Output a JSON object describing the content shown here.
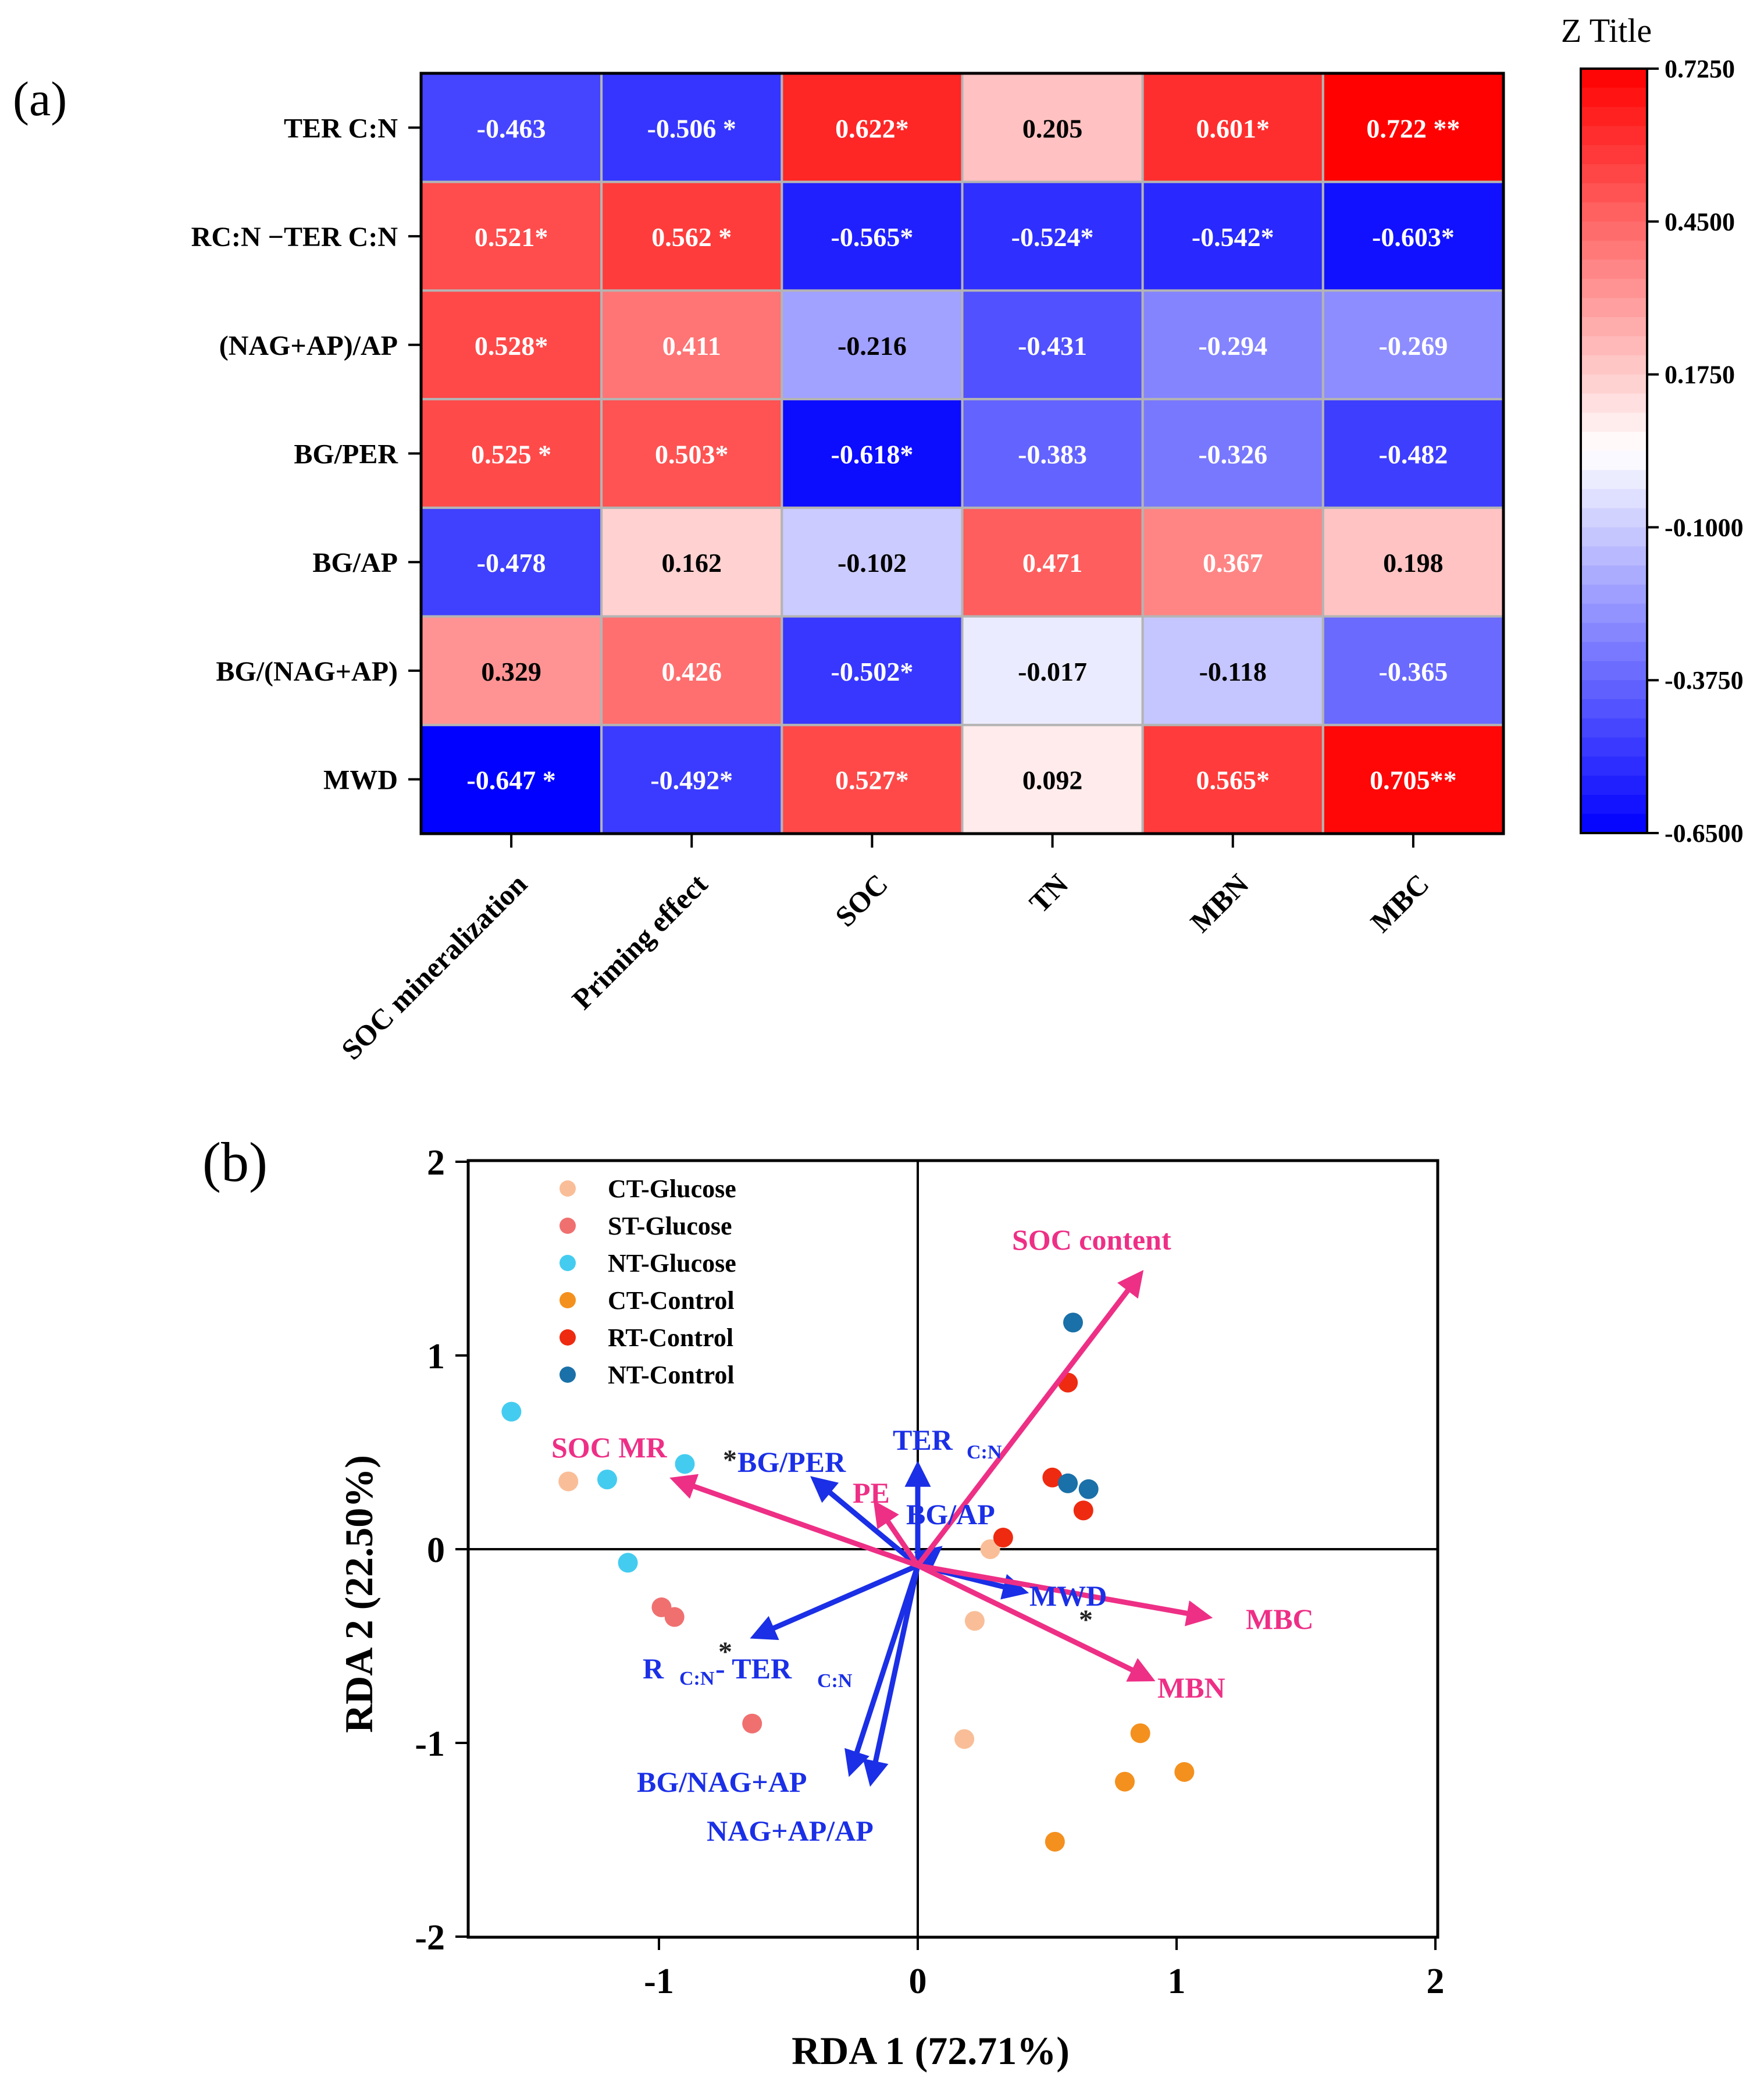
{
  "panel_labels": {
    "a": "(a)",
    "b": "(b)"
  },
  "chart_data": [
    {
      "type": "heatmap",
      "title": "",
      "colorbar_title": "Z Title",
      "colorbar_ticks": [
        "0.7250",
        "0.4500",
        "0.1750",
        "-0.1000",
        "-0.3750",
        "-0.6500"
      ],
      "colorbar_range": [
        -0.65,
        0.725
      ],
      "rows": [
        "TER C:N",
        "RC:N −TER C:N",
        "(NAG+AP)/AP",
        "BG/PER",
        "BG/AP",
        "BG/(NAG+AP)",
        "MWD"
      ],
      "cols": [
        "SOC mineralization",
        "Priming effect",
        "SOC",
        "TN",
        "MBN",
        "MBC"
      ],
      "values": [
        [
          -0.463,
          -0.506,
          0.622,
          0.205,
          0.601,
          0.722
        ],
        [
          0.521,
          0.562,
          -0.565,
          -0.524,
          -0.542,
          -0.603
        ],
        [
          0.528,
          0.411,
          -0.216,
          -0.431,
          -0.294,
          -0.269
        ],
        [
          0.525,
          0.503,
          -0.618,
          -0.383,
          -0.326,
          -0.482
        ],
        [
          -0.478,
          0.162,
          -0.102,
          0.471,
          0.367,
          0.198
        ],
        [
          0.329,
          0.426,
          -0.502,
          -0.017,
          -0.118,
          -0.365
        ],
        [
          -0.647,
          -0.492,
          0.527,
          0.092,
          0.565,
          0.705
        ]
      ],
      "labels": [
        [
          "-0.463",
          "-0.506 *",
          "0.622*",
          "0.205",
          "0.601*",
          "0.722 **"
        ],
        [
          "0.521*",
          "0.562 *",
          "-0.565*",
          "-0.524*",
          "-0.542*",
          "-0.603*"
        ],
        [
          "0.528*",
          "0.411",
          "-0.216",
          "-0.431",
          "-0.294",
          "-0.269"
        ],
        [
          "0.525 *",
          "0.503*",
          "-0.618*",
          "-0.383",
          "-0.326",
          "-0.482"
        ],
        [
          "-0.478",
          "0.162",
          "-0.102",
          "0.471",
          "0.367",
          "0.198"
        ],
        [
          "0.329",
          "0.426",
          "-0.502*",
          "-0.017",
          "-0.118",
          "-0.365"
        ],
        [
          "-0.647 *",
          "-0.492*",
          "0.527*",
          "0.092",
          "0.565*",
          "0.705**"
        ]
      ],
      "colors": {
        "low": "#0000ff",
        "mid": "#ffffff",
        "high": "#ff0000"
      }
    },
    {
      "type": "scatter",
      "title": "",
      "xlabel": "RDA 1 (72.71%)",
      "ylabel": "RDA 2 (22.50%)",
      "xlim": [
        -1.75,
        2.0
      ],
      "ylim": [
        -2.0,
        2.0
      ],
      "xticks": [
        -1,
        0,
        1,
        2
      ],
      "yticks": [
        -2,
        -1,
        0,
        1,
        2
      ],
      "xtick_labels": [
        "-1",
        "0",
        "1",
        "2"
      ],
      "ytick_labels": [
        "-2",
        "-1",
        "0",
        "1",
        "2"
      ],
      "legend_position": "top-left",
      "series": [
        {
          "name": "CT-Glucose",
          "color": "#f9be98",
          "points": [
            [
              -1.35,
              0.35
            ],
            [
              0.28,
              0.0
            ],
            [
              0.22,
              -0.37
            ],
            [
              0.18,
              -0.98
            ]
          ]
        },
        {
          "name": "ST-Glucose",
          "color": "#f07070",
          "points": [
            [
              -0.99,
              -0.3
            ],
            [
              -0.94,
              -0.35
            ],
            [
              -0.64,
              -0.9
            ]
          ]
        },
        {
          "name": "NT-Glucose",
          "color": "#44ccf0",
          "points": [
            [
              -1.57,
              0.71
            ],
            [
              -1.2,
              0.36
            ],
            [
              -0.9,
              0.44
            ],
            [
              -1.12,
              -0.07
            ]
          ]
        },
        {
          "name": "CT-Control",
          "color": "#f4901e",
          "points": [
            [
              0.86,
              -0.95
            ],
            [
              1.03,
              -1.15
            ],
            [
              0.8,
              -1.2
            ],
            [
              0.53,
              -1.51
            ]
          ]
        },
        {
          "name": "RT-Control",
          "color": "#ee2a10",
          "points": [
            [
              0.58,
              0.86
            ],
            [
              0.52,
              0.37
            ],
            [
              0.64,
              0.2
            ],
            [
              0.33,
              0.06
            ]
          ]
        },
        {
          "name": "NT-Control",
          "color": "#1a70a8",
          "points": [
            [
              0.6,
              1.17
            ],
            [
              0.58,
              0.34
            ],
            [
              0.66,
              0.31
            ]
          ]
        }
      ],
      "response_arrows": [
        {
          "label": "SOC content",
          "end": [
            0.86,
            1.42
          ]
        },
        {
          "label": "SOC MR",
          "end": [
            -0.94,
            0.36
          ]
        },
        {
          "label": "PE",
          "end": [
            -0.16,
            0.23
          ]
        },
        {
          "label": "MBC",
          "end": [
            1.12,
            -0.35
          ]
        },
        {
          "label": "MBN",
          "end": [
            0.9,
            -0.67
          ]
        }
      ],
      "explanatory_arrows": [
        {
          "label": "TER",
          "sub": "C:N",
          "end": [
            0.0,
            0.43
          ]
        },
        {
          "label": "BG/PER",
          "end": [
            -0.4,
            0.36
          ]
        },
        {
          "label": "BG/AP",
          "end": [
            0.08,
            0.0
          ]
        },
        {
          "label": "MWD",
          "end": [
            0.41,
            -0.22
          ]
        },
        {
          "label": "R",
          "sub": "C:N",
          "label2": "- TER",
          "sub2": "C:N",
          "end": [
            -0.63,
            -0.45
          ]
        },
        {
          "label": "BG/NAG+AP",
          "end": [
            -0.26,
            -1.15
          ]
        },
        {
          "label": "NAG+AP/AP",
          "end": [
            -0.18,
            -1.2
          ]
        }
      ],
      "asterisks": [
        "*",
        "*",
        "*"
      ],
      "colors": {
        "response": "#ee2f86",
        "explanatory": "#1a2fe6"
      }
    }
  ]
}
